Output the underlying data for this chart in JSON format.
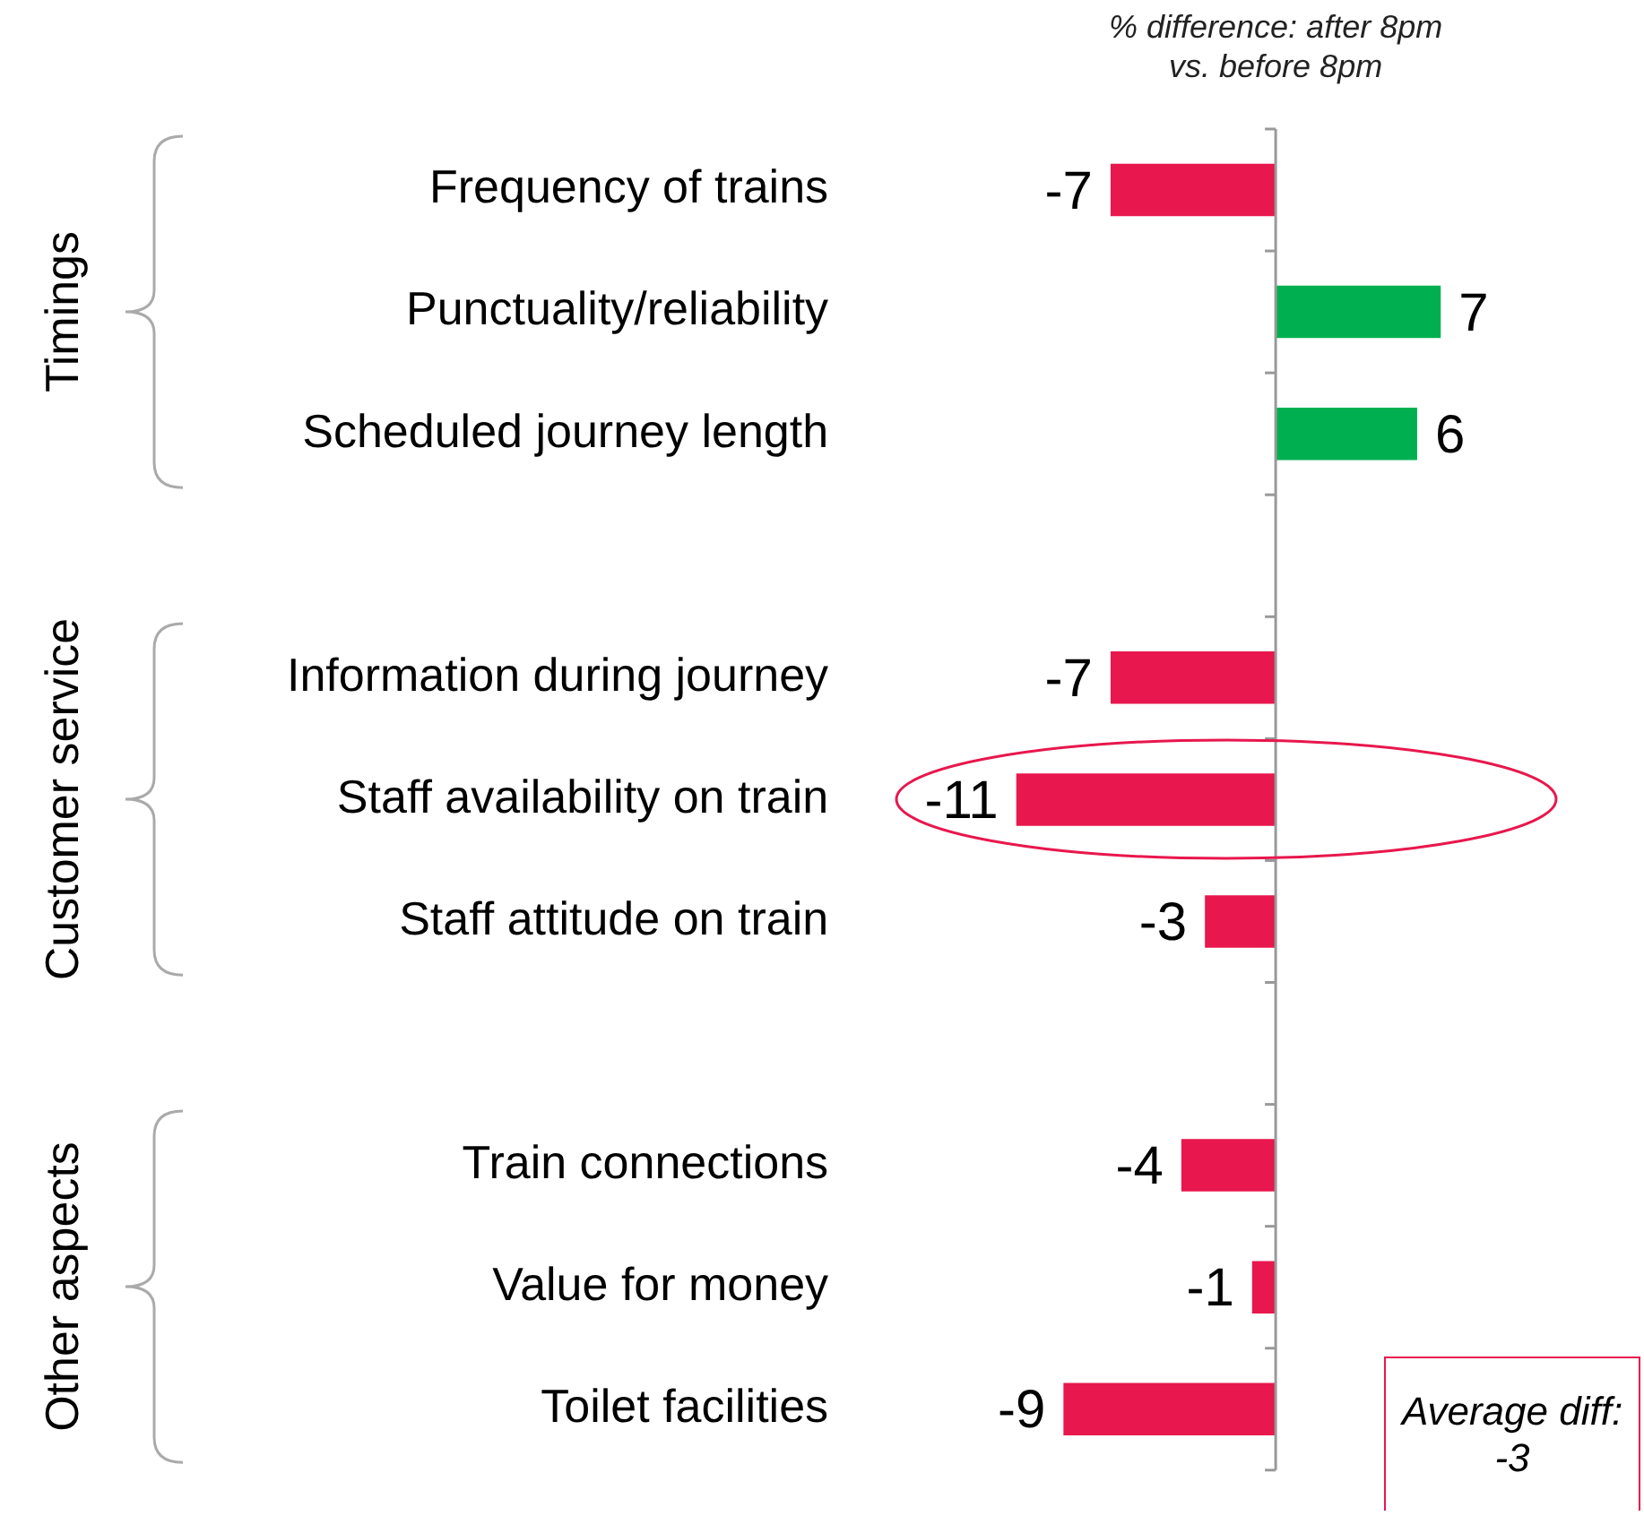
{
  "chart_data": {
    "type": "bar",
    "orientation": "horizontal",
    "title": "% difference: after 8pm vs. before 8pm",
    "categories": [
      "Frequency of trains",
      "Punctuality/reliability",
      "Scheduled journey length",
      null,
      "Information during journey",
      "Staff availability on train",
      "Staff attitude on train",
      null,
      "Train connections",
      "Value for money",
      "Toilet facilities"
    ],
    "values": [
      -7,
      7,
      6,
      null,
      -7,
      -11,
      -3,
      null,
      -4,
      -1,
      -9
    ],
    "colors": [
      "#e8174d",
      "#00b050",
      "#00b050",
      null,
      "#e8174d",
      "#e8174d",
      "#e8174d",
      null,
      "#e8174d",
      "#e8174d",
      "#e8174d"
    ],
    "data_labels": true,
    "annotations": [
      "Timings",
      "Customer service",
      "Other aspects",
      "Average diff: -3"
    ]
  }
}
